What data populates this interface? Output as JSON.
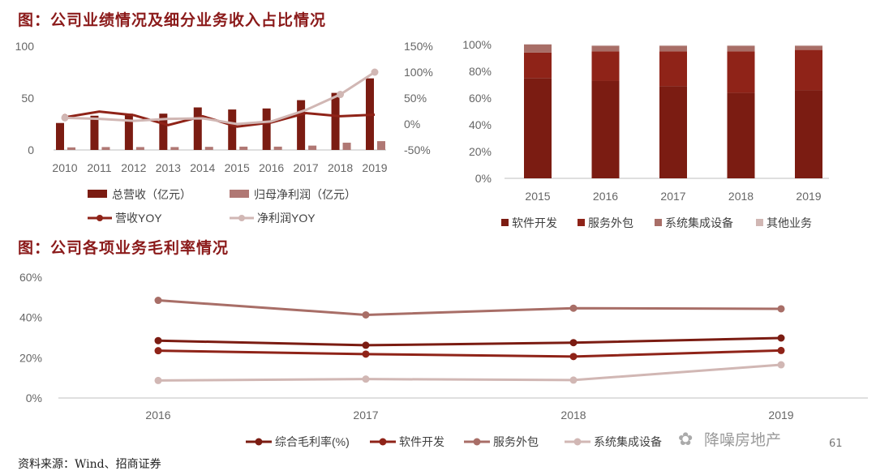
{
  "title1": "图：公司业绩情况及细分业务收入占比情况",
  "title2": "图：公司各项业务毛利率情况",
  "source": "资料来源：Wind、招商证券",
  "watermark": "降噪房地产",
  "page_number": "61",
  "colors": {
    "dark_red": "#7b1c12",
    "red": "#8f2318",
    "rose": "#a86e67",
    "light": "#d1b7b4",
    "grid": "#e3e3e3",
    "axis_text": "#666666"
  },
  "chart_data": [
    {
      "type": "bar",
      "name": "performance",
      "categories": [
        "2010",
        "2011",
        "2012",
        "2013",
        "2014",
        "2015",
        "2016",
        "2017",
        "2018",
        "2019"
      ],
      "series": [
        {
          "name": "总营收（亿元）",
          "kind": "bar",
          "axis": "left",
          "color": "#7b1c12",
          "values": [
            26,
            33,
            35,
            35,
            41,
            39,
            40,
            48,
            55,
            69
          ]
        },
        {
          "name": "归母净利润（亿元）",
          "kind": "bar",
          "axis": "left",
          "color": "#b07874",
          "values": [
            2.5,
            2.8,
            2.8,
            2.8,
            3.0,
            3.2,
            3.2,
            4.2,
            7.0,
            8.5
          ]
        },
        {
          "name": "营收YOY",
          "kind": "line",
          "axis": "right",
          "color": "#8f2318",
          "values": [
            13,
            24,
            17,
            -2,
            15,
            -5,
            3,
            21,
            15,
            18
          ]
        },
        {
          "name": "净利润YOY",
          "kind": "line",
          "axis": "right",
          "color": "#d1b7b4",
          "values": [
            12,
            10,
            6,
            10,
            11,
            0,
            5,
            27,
            57,
            100
          ]
        }
      ],
      "ylim_left": [
        0,
        100
      ],
      "yticks_left": [
        "0",
        "50",
        "100"
      ],
      "ylim_right": [
        -50,
        150
      ],
      "yticks_right": [
        "-50%",
        "0%",
        "50%",
        "100%",
        "150%"
      ],
      "legend_position": "bottom"
    },
    {
      "type": "bar",
      "name": "revenue_share",
      "stacked": true,
      "categories": [
        "2015",
        "2016",
        "2017",
        "2018",
        "2019"
      ],
      "series": [
        {
          "name": "软件开发",
          "color": "#7b1c12",
          "values": [
            75,
            73,
            69,
            64,
            66
          ]
        },
        {
          "name": "服务外包",
          "color": "#8f2318",
          "values": [
            19,
            22,
            26,
            31,
            30
          ]
        },
        {
          "name": "系统集成设备",
          "color": "#a86e67",
          "values": [
            6,
            4,
            4,
            4,
            3
          ]
        },
        {
          "name": "其他业务",
          "color": "#d1b7b4",
          "values": [
            0.3,
            0.5,
            0.5,
            0.5,
            0.5
          ]
        }
      ],
      "ylim": [
        0,
        100
      ],
      "yticks": [
        "0%",
        "20%",
        "40%",
        "60%",
        "80%",
        "100%"
      ],
      "legend_position": "bottom"
    },
    {
      "type": "line",
      "name": "gross_margin",
      "categories": [
        "2016",
        "2017",
        "2018",
        "2019"
      ],
      "series": [
        {
          "name": "综合毛利率(%)",
          "color": "#7b1c12",
          "values": [
            28.5,
            26.2,
            27.5,
            29.8
          ]
        },
        {
          "name": "软件开发",
          "color": "#8f2318",
          "values": [
            23.5,
            21.8,
            20.6,
            23.6
          ]
        },
        {
          "name": "服务外包",
          "color": "#a86e67",
          "values": [
            48.5,
            41.3,
            44.6,
            44.3
          ]
        },
        {
          "name": "系统集成设备",
          "color": "#d1b7b4",
          "values": [
            8.7,
            9.4,
            8.9,
            16.5
          ]
        }
      ],
      "ylim": [
        0,
        60
      ],
      "yticks": [
        "0%",
        "20%",
        "40%",
        "60%"
      ],
      "legend_position": "bottom"
    }
  ]
}
